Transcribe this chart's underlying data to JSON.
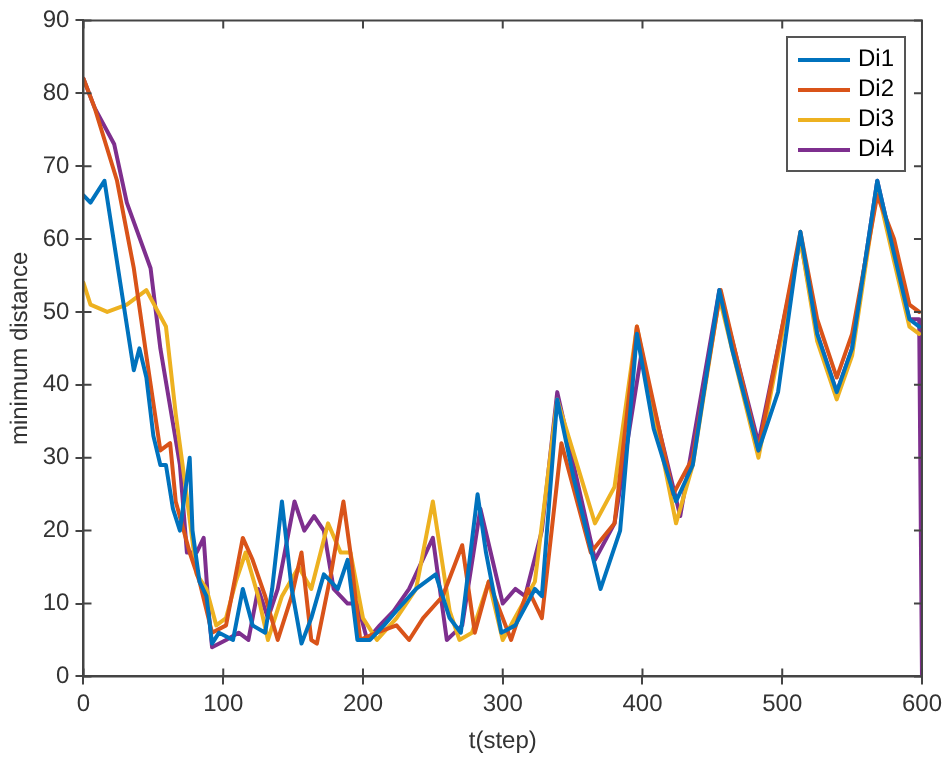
{
  "chart_data": {
    "type": "line",
    "xlabel": "t(step)",
    "ylabel": "minimum distance",
    "xlim": [
      0,
      600
    ],
    "xticks": [
      0,
      100,
      200,
      300,
      400,
      500,
      600
    ],
    "ylim": [
      0,
      90
    ],
    "yticks": [
      0,
      10,
      20,
      30,
      40,
      50,
      60,
      70,
      80,
      90
    ],
    "grid": false,
    "legend": "top right",
    "marker": "none",
    "line_style": "solid",
    "series": [
      {
        "name": "Di1",
        "color": "#0072bd",
        "x": [
          0,
          5,
          15,
          36,
          40,
          45,
          50,
          55,
          59,
          64,
          69,
          76,
          78,
          83,
          88,
          92,
          97,
          107,
          114,
          121,
          130,
          135,
          142,
          149,
          156,
          163,
          172,
          182,
          189,
          196,
          205,
          215,
          224,
          238,
          252,
          262,
          270,
          282,
          288,
          299,
          309,
          323,
          328,
          339,
          351,
          370,
          384,
          396,
          408,
          424,
          436,
          455,
          464,
          483,
          497,
          513,
          525,
          539,
          550,
          568,
          580,
          591,
          598
        ],
        "values": [
          66,
          65,
          68,
          42,
          45,
          41,
          33,
          29,
          29,
          23,
          20,
          30,
          20,
          13,
          11,
          4.5,
          6,
          5,
          12,
          7,
          6,
          12,
          24,
          12,
          4.5,
          8,
          14,
          12,
          16,
          5,
          5,
          7,
          9,
          12,
          14,
          8,
          6,
          25,
          17,
          6,
          7,
          12,
          11,
          38,
          27,
          12,
          20,
          47,
          34,
          24,
          29,
          53,
          45,
          31,
          39,
          61,
          47,
          39,
          45,
          68,
          58,
          49,
          48
        ]
      },
      {
        "name": "Di2",
        "color": "#d95319",
        "x": [
          0,
          8,
          24,
          36,
          45,
          55,
          62,
          66,
          76,
          83,
          92,
          102,
          107,
          114,
          121,
          130,
          139,
          149,
          156,
          163,
          167,
          177,
          186,
          191,
          198,
          210,
          224,
          233,
          243,
          257,
          271,
          280,
          290,
          306,
          318,
          328,
          342,
          363,
          380,
          396,
          422,
          436,
          456,
          483,
          513,
          525,
          539,
          550,
          568,
          580,
          591,
          598
        ],
        "values": [
          82,
          78,
          68,
          56,
          44,
          31,
          32,
          24,
          17,
          13,
          6,
          7,
          12,
          19,
          16,
          11,
          5,
          11,
          17,
          5,
          4.5,
          14,
          24,
          17,
          5,
          6,
          7,
          5,
          8,
          11,
          18,
          6,
          13,
          5,
          12,
          8,
          32,
          17,
          21,
          48,
          25,
          30,
          53,
          31,
          61,
          49,
          41,
          47,
          66,
          60,
          51,
          50
        ]
      },
      {
        "name": "Di3",
        "color": "#edb120",
        "x": [
          0,
          5,
          17,
          31,
          45,
          59,
          66,
          73,
          81,
          88,
          95,
          102,
          109,
          116,
          125,
          132,
          142,
          154,
          163,
          175,
          184,
          191,
          200,
          210,
          224,
          238,
          250,
          262,
          269,
          278,
          290,
          300,
          323,
          339,
          366,
          380,
          396,
          424,
          436,
          455,
          483,
          513,
          525,
          539,
          550,
          568,
          580,
          591,
          598
        ],
        "values": [
          54,
          51,
          50,
          51,
          53,
          48,
          36,
          26,
          14,
          12,
          7,
          8,
          13,
          17,
          11,
          5,
          11,
          15,
          12,
          21,
          17,
          17,
          8,
          5,
          8,
          12,
          24,
          9,
          5,
          6,
          13,
          5,
          13,
          38,
          21,
          26,
          48,
          21,
          29,
          52,
          30,
          60,
          46,
          38,
          44,
          67,
          57,
          48,
          47
        ]
      },
      {
        "name": "Di4",
        "color": "#7e2f8e",
        "x": [
          0,
          8,
          22,
          31,
          48,
          55,
          62,
          69,
          74,
          81,
          86,
          90,
          92,
          102,
          111,
          118,
          125,
          132,
          139,
          151,
          158,
          165,
          172,
          179,
          189,
          196,
          203,
          212,
          222,
          233,
          250,
          260,
          271,
          284,
          300,
          309,
          316,
          328,
          339,
          366,
          380,
          399,
          427,
          455,
          483,
          513,
          525,
          539,
          550,
          568,
          580,
          591,
          598,
          600
        ],
        "values": [
          82,
          78,
          73,
          65,
          56,
          45,
          37,
          29,
          17,
          17,
          19,
          8,
          4,
          5,
          6,
          5,
          12,
          8,
          12,
          24,
          20,
          22,
          20,
          12,
          10,
          10,
          5,
          7,
          9,
          12,
          19,
          5,
          7,
          23,
          10,
          12,
          11,
          20,
          39,
          16,
          21,
          44,
          22,
          53,
          32,
          60,
          47,
          39,
          45,
          68,
          58,
          49,
          49,
          0
        ]
      }
    ]
  }
}
